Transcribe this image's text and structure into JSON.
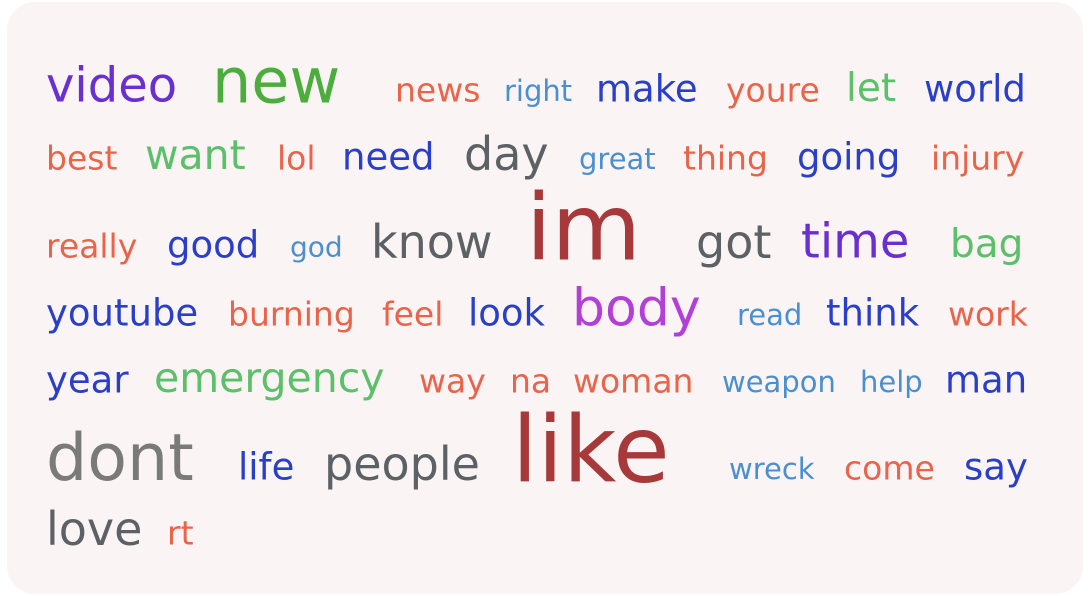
{
  "words": [
    {
      "text": "video",
      "color": "#6a2fd0",
      "weight": 48
    },
    {
      "text": "new",
      "color": "#4aad3c",
      "weight": 62
    },
    {
      "text": "news",
      "color": "#e8644a",
      "weight": 33
    },
    {
      "text": "right",
      "color": "#4a90d0",
      "weight": 29
    },
    {
      "text": "make",
      "color": "#2a3fc8",
      "weight": 37
    },
    {
      "text": "youre",
      "color": "#e8644a",
      "weight": 33
    },
    {
      "text": "let",
      "color": "#5cbf6a",
      "weight": 39
    },
    {
      "text": "world",
      "color": "#2a3fc8",
      "weight": 37
    },
    {
      "text": "best",
      "color": "#e8644a",
      "weight": 33
    },
    {
      "text": "want",
      "color": "#5cbf6a",
      "weight": 41
    },
    {
      "text": "lol",
      "color": "#e8644a",
      "weight": 33
    },
    {
      "text": "need",
      "color": "#2a3fc8",
      "weight": 37
    },
    {
      "text": "day",
      "color": "#5b6165",
      "weight": 46
    },
    {
      "text": "great",
      "color": "#4a90d0",
      "weight": 29
    },
    {
      "text": "thing",
      "color": "#e8644a",
      "weight": 33
    },
    {
      "text": "going",
      "color": "#2a3fc8",
      "weight": 37
    },
    {
      "text": "injury",
      "color": "#e8644a",
      "weight": 33
    },
    {
      "text": "really",
      "color": "#e8644a",
      "weight": 33
    },
    {
      "text": "good",
      "color": "#2a3fc8",
      "weight": 37
    },
    {
      "text": "god",
      "color": "#4a90d0",
      "weight": 28
    },
    {
      "text": "know",
      "color": "#5b6165",
      "weight": 46
    },
    {
      "text": "im",
      "color": "#a8393a",
      "weight": 92
    },
    {
      "text": "got",
      "color": "#5b6165",
      "weight": 46
    },
    {
      "text": "time",
      "color": "#6a2fd0",
      "weight": 48
    },
    {
      "text": "bag",
      "color": "#5cbf6a",
      "weight": 39
    },
    {
      "text": "youtube",
      "color": "#2a3fc8",
      "weight": 37
    },
    {
      "text": "burning",
      "color": "#e8644a",
      "weight": 33
    },
    {
      "text": "feel",
      "color": "#e8644a",
      "weight": 33
    },
    {
      "text": "look",
      "color": "#2a3fc8",
      "weight": 37
    },
    {
      "text": "body",
      "color": "#b23fd8",
      "weight": 52
    },
    {
      "text": "read",
      "color": "#4a90d0",
      "weight": 29
    },
    {
      "text": "think",
      "color": "#2a3fc8",
      "weight": 37
    },
    {
      "text": "work",
      "color": "#e8644a",
      "weight": 33
    },
    {
      "text": "year",
      "color": "#2a3fc8",
      "weight": 37
    },
    {
      "text": "emergency",
      "color": "#5cbf6a",
      "weight": 41
    },
    {
      "text": "way",
      "color": "#e8644a",
      "weight": 33
    },
    {
      "text": "na",
      "color": "#e8644a",
      "weight": 33
    },
    {
      "text": "woman",
      "color": "#e8644a",
      "weight": 33
    },
    {
      "text": "weapon",
      "color": "#4a90d0",
      "weight": 29
    },
    {
      "text": "help",
      "color": "#4a90d0",
      "weight": 29
    },
    {
      "text": "man",
      "color": "#2a3fc8",
      "weight": 37
    },
    {
      "text": "dont",
      "color": "#7a7a7a",
      "weight": 65
    },
    {
      "text": "life",
      "color": "#2a3fc8",
      "weight": 37
    },
    {
      "text": "people",
      "color": "#5b6165",
      "weight": 46
    },
    {
      "text": "like",
      "color": "#a8393a",
      "weight": 92
    },
    {
      "text": "wreck",
      "color": "#4a90d0",
      "weight": 29
    },
    {
      "text": "come",
      "color": "#e8644a",
      "weight": 33
    },
    {
      "text": "say",
      "color": "#2a3fc8",
      "weight": 37
    },
    {
      "text": "love",
      "color": "#5b6165",
      "weight": 46
    },
    {
      "text": "rt",
      "color": "#e8644a",
      "weight": 33
    }
  ]
}
